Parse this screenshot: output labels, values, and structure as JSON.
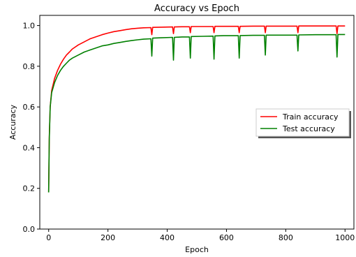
{
  "chart_data": {
    "type": "line",
    "title": "Accuracy vs Epoch",
    "xlabel": "Epoch",
    "ylabel": "Accuracy",
    "xlim": [
      -30,
      1030
    ],
    "ylim": [
      0.0,
      1.05
    ],
    "x_ticks": [
      0,
      200,
      400,
      600,
      800,
      1000
    ],
    "y_ticks": [
      0.0,
      0.2,
      0.4,
      0.6,
      0.8,
      1.0
    ],
    "grid": false,
    "legend_position": "center-right",
    "series": [
      {
        "name": "Train accuracy",
        "color": "#ff0000",
        "points": [
          [
            0,
            0.18
          ],
          [
            2,
            0.45
          ],
          [
            5,
            0.6
          ],
          [
            10,
            0.68
          ],
          [
            20,
            0.74
          ],
          [
            30,
            0.78
          ],
          [
            40,
            0.81
          ],
          [
            50,
            0.835
          ],
          [
            60,
            0.855
          ],
          [
            70,
            0.87
          ],
          [
            80,
            0.885
          ],
          [
            100,
            0.905
          ],
          [
            120,
            0.92
          ],
          [
            140,
            0.935
          ],
          [
            160,
            0.945
          ],
          [
            180,
            0.955
          ],
          [
            200,
            0.963
          ],
          [
            220,
            0.97
          ],
          [
            240,
            0.975
          ],
          [
            260,
            0.98
          ],
          [
            280,
            0.984
          ],
          [
            300,
            0.987
          ],
          [
            320,
            0.989
          ],
          [
            345,
            0.99
          ],
          [
            348,
            0.955
          ],
          [
            351,
            0.991
          ],
          [
            380,
            0.992
          ],
          [
            418,
            0.993
          ],
          [
            421,
            0.96
          ],
          [
            424,
            0.993
          ],
          [
            450,
            0.994
          ],
          [
            475,
            0.994
          ],
          [
            478,
            0.965
          ],
          [
            481,
            0.995
          ],
          [
            520,
            0.995
          ],
          [
            555,
            0.995
          ],
          [
            558,
            0.965
          ],
          [
            561,
            0.996
          ],
          [
            600,
            0.996
          ],
          [
            640,
            0.996
          ],
          [
            643,
            0.965
          ],
          [
            646,
            0.996
          ],
          [
            690,
            0.997
          ],
          [
            728,
            0.997
          ],
          [
            731,
            0.965
          ],
          [
            734,
            0.997
          ],
          [
            780,
            0.997
          ],
          [
            838,
            0.997
          ],
          [
            841,
            0.965
          ],
          [
            844,
            0.998
          ],
          [
            900,
            0.998
          ],
          [
            970,
            0.998
          ],
          [
            973,
            0.96
          ],
          [
            976,
            0.998
          ],
          [
            1000,
            0.998
          ]
        ]
      },
      {
        "name": "Test accuracy",
        "color": "#008000",
        "points": [
          [
            0,
            0.18
          ],
          [
            2,
            0.44
          ],
          [
            5,
            0.6
          ],
          [
            10,
            0.67
          ],
          [
            20,
            0.72
          ],
          [
            30,
            0.755
          ],
          [
            40,
            0.78
          ],
          [
            50,
            0.8
          ],
          [
            60,
            0.815
          ],
          [
            70,
            0.83
          ],
          [
            80,
            0.84
          ],
          [
            100,
            0.855
          ],
          [
            120,
            0.87
          ],
          [
            140,
            0.88
          ],
          [
            160,
            0.89
          ],
          [
            180,
            0.9
          ],
          [
            200,
            0.905
          ],
          [
            220,
            0.912
          ],
          [
            240,
            0.917
          ],
          [
            260,
            0.922
          ],
          [
            280,
            0.926
          ],
          [
            300,
            0.93
          ],
          [
            320,
            0.933
          ],
          [
            345,
            0.935
          ],
          [
            348,
            0.85
          ],
          [
            351,
            0.938
          ],
          [
            380,
            0.94
          ],
          [
            418,
            0.942
          ],
          [
            421,
            0.83
          ],
          [
            424,
            0.942
          ],
          [
            450,
            0.944
          ],
          [
            475,
            0.944
          ],
          [
            478,
            0.84
          ],
          [
            481,
            0.946
          ],
          [
            520,
            0.947
          ],
          [
            555,
            0.948
          ],
          [
            558,
            0.835
          ],
          [
            561,
            0.949
          ],
          [
            590,
            0.95
          ],
          [
            640,
            0.95
          ],
          [
            643,
            0.84
          ],
          [
            646,
            0.951
          ],
          [
            690,
            0.952
          ],
          [
            728,
            0.952
          ],
          [
            731,
            0.855
          ],
          [
            734,
            0.953
          ],
          [
            780,
            0.953
          ],
          [
            838,
            0.953
          ],
          [
            841,
            0.875
          ],
          [
            844,
            0.954
          ],
          [
            900,
            0.955
          ],
          [
            970,
            0.955
          ],
          [
            973,
            0.845
          ],
          [
            976,
            0.956
          ],
          [
            1000,
            0.956
          ]
        ]
      }
    ]
  }
}
